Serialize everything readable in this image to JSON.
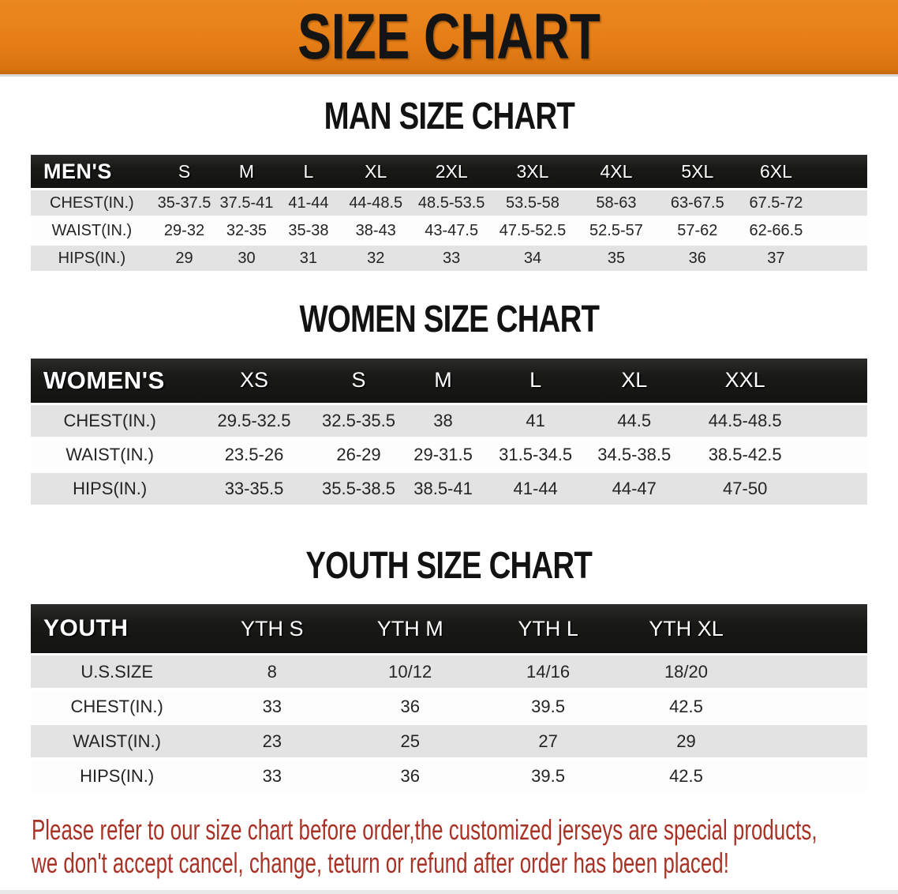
{
  "banner": {
    "title": "SIZE CHART"
  },
  "sections": [
    {
      "title": "MAN SIZE CHART",
      "header_label": "MEN'S",
      "sizes": [
        "S",
        "M",
        "L",
        "XL",
        "2XL",
        "3XL",
        "4XL",
        "5XL",
        "6XL"
      ],
      "rows": [
        {
          "label": "CHEST(IN.)",
          "values": [
            "35-37.5",
            "37.5-41",
            "41-44",
            "44-48.5",
            "48.5-53.5",
            "53.5-58",
            "58-63",
            "63-67.5",
            "67.5-72"
          ]
        },
        {
          "label": "WAIST(IN.)",
          "values": [
            "29-32",
            "32-35",
            "35-38",
            "38-43",
            "43-47.5",
            "47.5-52.5",
            "52.5-57",
            "57-62",
            "62-66.5"
          ]
        },
        {
          "label": "HIPS(IN.)",
          "values": [
            "29",
            "30",
            "31",
            "32",
            "33",
            "34",
            "35",
            "36",
            "37"
          ]
        }
      ]
    },
    {
      "title": "WOMEN SIZE CHART",
      "header_label": "WOMEN'S",
      "sizes": [
        "XS",
        "S",
        "M",
        "L",
        "XL",
        "XXL"
      ],
      "rows": [
        {
          "label": "CHEST(IN.)",
          "values": [
            "29.5-32.5",
            "32.5-35.5",
            "38",
            "41",
            "44.5",
            "44.5-48.5"
          ]
        },
        {
          "label": "WAIST(IN.)",
          "values": [
            "23.5-26",
            "26-29",
            "29-31.5",
            "31.5-34.5",
            "34.5-38.5",
            "38.5-42.5"
          ]
        },
        {
          "label": "HIPS(IN.)",
          "values": [
            "33-35.5",
            "35.5-38.5",
            "38.5-41",
            "41-44",
            "44-47",
            "47-50"
          ]
        }
      ]
    },
    {
      "title": "YOUTH SIZE CHART",
      "header_label": "YOUTH",
      "sizes": [
        "YTH S",
        "YTH M",
        "YTH L",
        "YTH XL"
      ],
      "rows": [
        {
          "label": "U.S.SIZE",
          "values": [
            "8",
            "10/12",
            "14/16",
            "18/20"
          ]
        },
        {
          "label": "CHEST(IN.)",
          "values": [
            "33",
            "36",
            "39.5",
            "42.5"
          ]
        },
        {
          "label": "WAIST(IN.)",
          "values": [
            "23",
            "25",
            "27",
            "29"
          ]
        },
        {
          "label": "HIPS(IN.)",
          "values": [
            "33",
            "36",
            "39.5",
            "42.5"
          ]
        }
      ]
    }
  ],
  "disclaimer": {
    "line1": "Please refer to our size chart before order,the customized jerseys are special products,",
    "line2": "we don't accept cancel, change, teturn or refund after order has been placed!",
    "color": "#a93226"
  },
  "colors": {
    "banner_orange": "#e67e17",
    "header_black": "#1a1a18",
    "row_gray": "#e3e3e3",
    "disclaimer_red": "#a93226"
  }
}
